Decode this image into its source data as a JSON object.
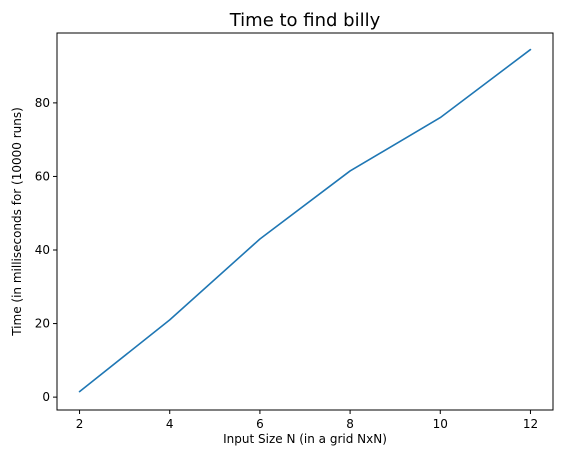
{
  "chart_data": {
    "type": "line",
    "title": "Time to find billy",
    "xlabel": "Input Size N (in a grid NxN)",
    "ylabel": "Time (in milliseconds for (10000 runs)",
    "xlim": [
      1.5,
      12.5
    ],
    "ylim": [
      -3.5,
      99
    ],
    "xticks": [
      2,
      4,
      6,
      8,
      10,
      12
    ],
    "yticks": [
      0,
      20,
      40,
      60,
      80
    ],
    "grid": false,
    "series": [
      {
        "color": "#1f77b4",
        "x": [
          2,
          4,
          6,
          8,
          10,
          12
        ],
        "y": [
          1.5,
          21,
          43,
          61.5,
          76,
          94.5
        ]
      }
    ]
  }
}
